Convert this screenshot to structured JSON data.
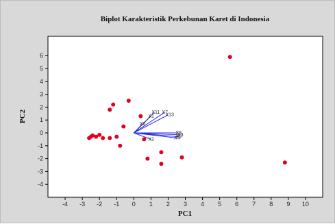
{
  "chart_data": {
    "type": "scatter",
    "title": "Biplot Karakteristik Perkebunan Karet di Indonesia",
    "xlabel": "PC1",
    "ylabel": "PC2",
    "xlim": [
      -5,
      11
    ],
    "ylim": [
      -5,
      7.5
    ],
    "xticks": [
      -4,
      -3,
      -2,
      -1,
      0,
      1,
      2,
      3,
      4,
      5,
      6,
      7,
      8,
      9,
      10
    ],
    "yticks": [
      -4,
      -3,
      -2,
      -1,
      0,
      1,
      2,
      3,
      4,
      5,
      6
    ],
    "grid": false,
    "point_color": "#e3001b",
    "vector_color": "#2a2ae0",
    "points": [
      {
        "x": 5.6,
        "y": 5.9
      },
      {
        "x": 8.8,
        "y": -2.3
      },
      {
        "x": -0.3,
        "y": 2.5
      },
      {
        "x": -1.2,
        "y": 2.2
      },
      {
        "x": -1.4,
        "y": 1.8
      },
      {
        "x": 0.4,
        "y": 1.3
      },
      {
        "x": -0.6,
        "y": 0.5
      },
      {
        "x": -2.6,
        "y": -0.4
      },
      {
        "x": -2.5,
        "y": -0.3
      },
      {
        "x": -2.4,
        "y": -0.2
      },
      {
        "x": -2.2,
        "y": -0.3
      },
      {
        "x": -2.0,
        "y": -0.15
      },
      {
        "x": -1.8,
        "y": -0.4
      },
      {
        "x": -1.4,
        "y": -0.4
      },
      {
        "x": -1.0,
        "y": -0.3
      },
      {
        "x": -0.8,
        "y": -1.0
      },
      {
        "x": 0.6,
        "y": -0.5
      },
      {
        "x": 0.8,
        "y": -2.0
      },
      {
        "x": 1.6,
        "y": -1.5
      },
      {
        "x": 1.6,
        "y": -2.4
      },
      {
        "x": 2.8,
        "y": -1.9
      }
    ],
    "vectors": [
      {
        "label": "X11",
        "x": 1.2,
        "y": 1.6
      },
      {
        "label": "X1",
        "x": 1.0,
        "y": 1.3
      },
      {
        "label": "X13",
        "x": 2.0,
        "y": 1.4
      },
      {
        "label": "X7",
        "x": 1.8,
        "y": 1.6
      },
      {
        "label": "X6",
        "x": 0.5,
        "y": 0.7
      },
      {
        "label": "X2",
        "x": 1.0,
        "y": -0.5
      },
      {
        "label": "X8",
        "x": 2.6,
        "y": 0.0
      },
      {
        "label": "X9",
        "x": 2.6,
        "y": -0.3
      },
      {
        "label": "X4",
        "x": 2.5,
        "y": -0.4
      },
      {
        "label": "X3",
        "x": 2.7,
        "y": -0.15
      }
    ]
  }
}
